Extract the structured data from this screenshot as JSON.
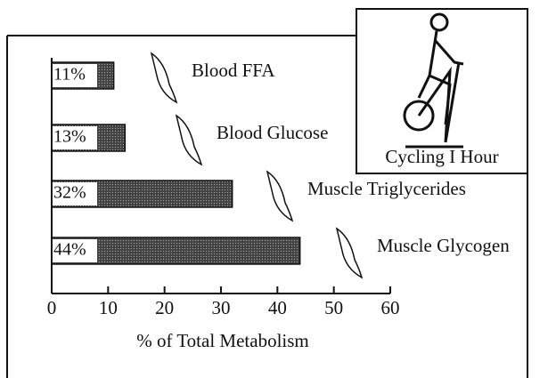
{
  "chart_data": {
    "type": "bar",
    "orientation": "horizontal",
    "inset_label": "Cycling I Hour",
    "xlabel": "% of Total Metabolism",
    "categories": [
      "Blood FFA",
      "Blood Glucose",
      "Muscle Triglycerides",
      "Muscle Glycogen"
    ],
    "values": [
      11,
      13,
      32,
      44
    ],
    "value_labels": [
      "11%",
      "13%",
      "32%",
      "44%"
    ],
    "color": "#555555",
    "xlim": [
      0,
      60
    ],
    "xticks": [
      0,
      10,
      20,
      30,
      40,
      50,
      60
    ]
  }
}
